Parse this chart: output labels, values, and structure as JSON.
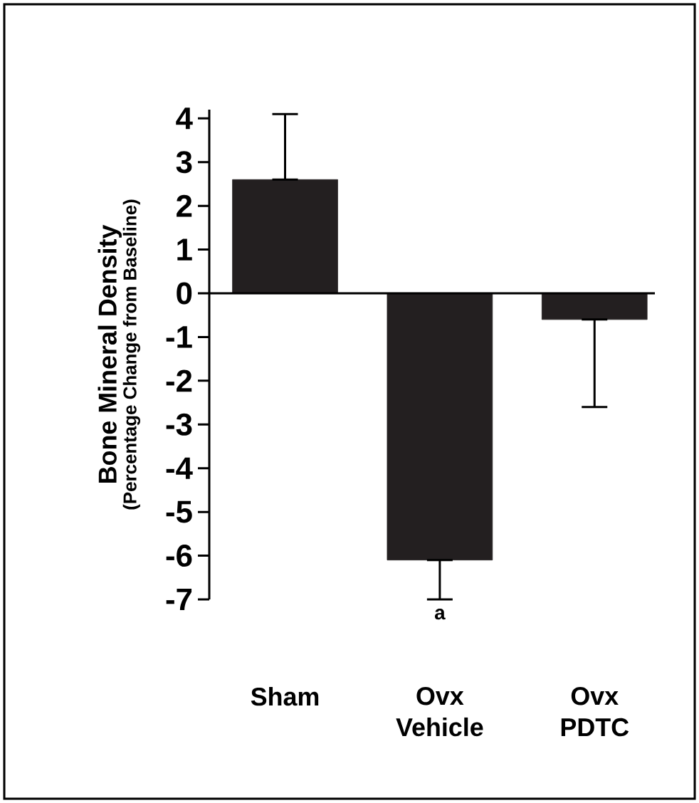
{
  "chart_data": {
    "type": "bar",
    "ylabel": "Bone Mineral Density",
    "categories": [
      "Sham",
      "Ovx Vehicle",
      "Ovx PDTC"
    ],
    "values": [
      2.6,
      -6.1,
      -0.6
    ],
    "errors": [
      [
        2.6,
        4.1
      ],
      [
        -7.0,
        -6.1
      ],
      [
        -2.6,
        -0.6
      ]
    ],
    "color": "#231f20",
    "ylim": [
      -7,
      4.2
    ],
    "yticks": [
      -7,
      -6,
      -5,
      -4,
      -3,
      -2,
      -1,
      0,
      1,
      2,
      3,
      4
    ],
    "annotations": [
      "(Percentage Change from Baseline)",
      {
        "text": "a",
        "x": "Ovx Vehicle",
        "y": -7.0
      }
    ]
  }
}
